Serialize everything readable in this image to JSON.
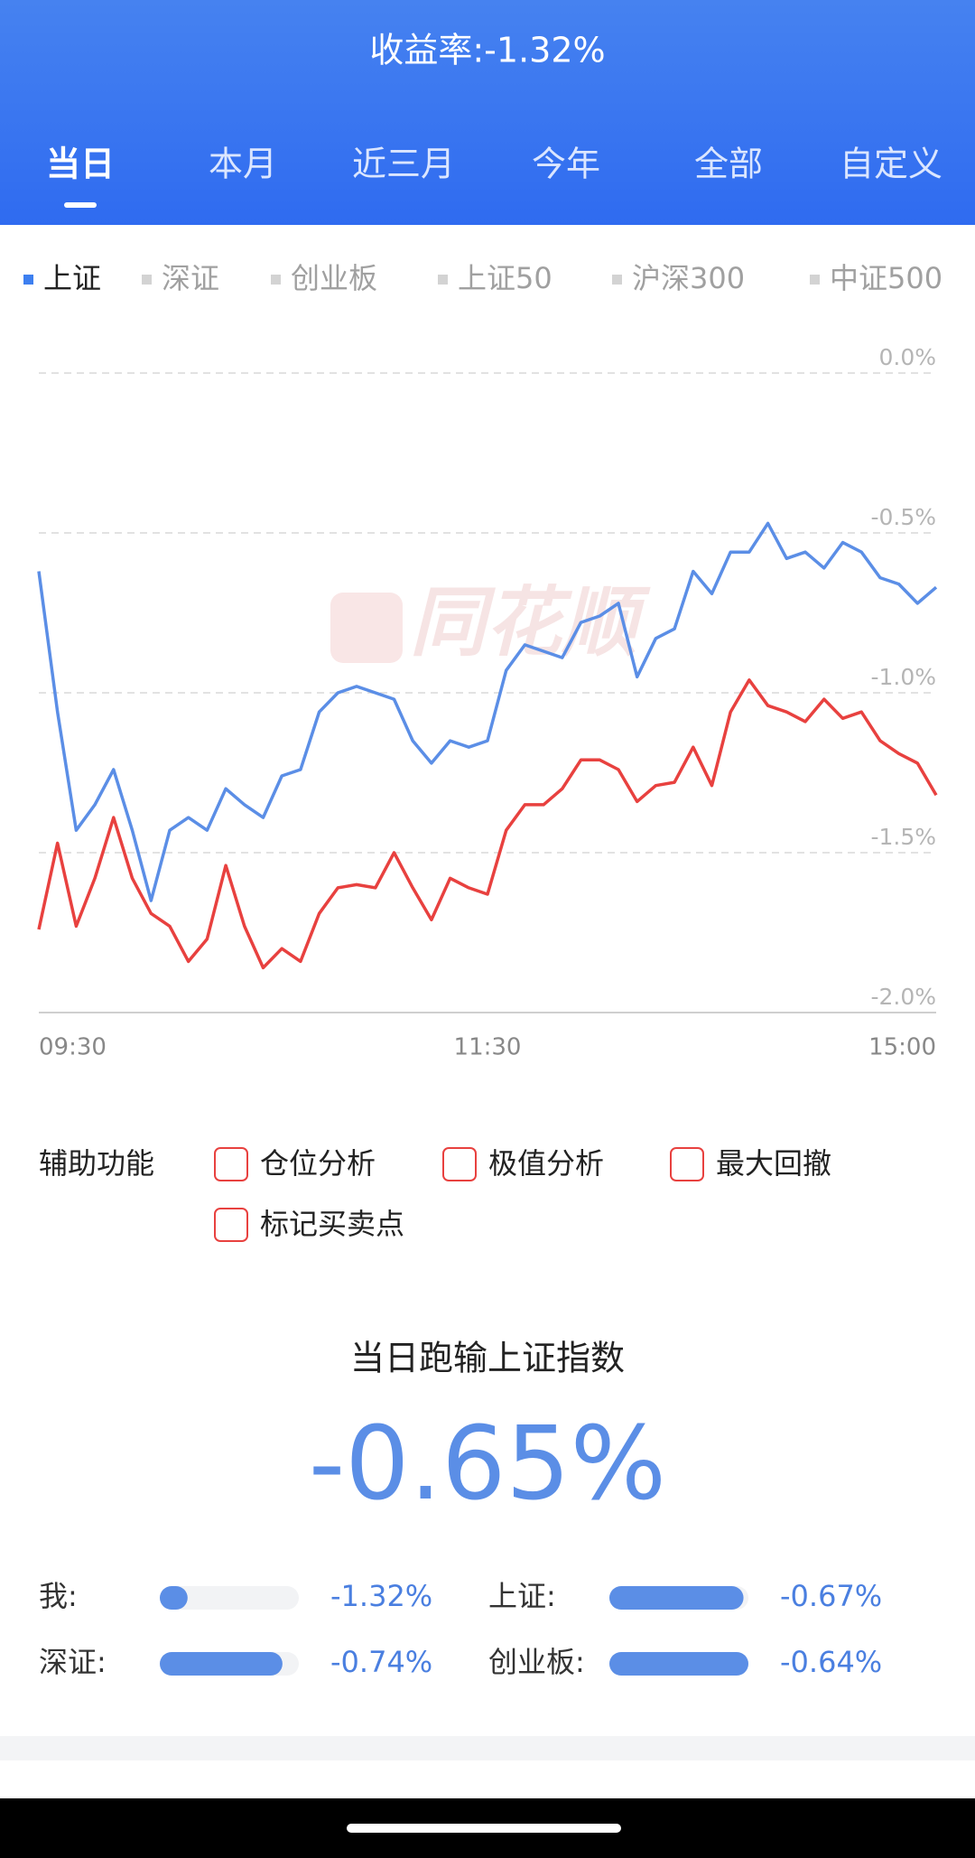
{
  "header": {
    "title": "收益率:-1.32%",
    "tabs": [
      "当日",
      "本月",
      "近三月",
      "今年",
      "全部",
      "自定义"
    ],
    "active_tab": 0
  },
  "legend": {
    "items": [
      "上证",
      "深证",
      "创业板",
      "上证50",
      "沪深300",
      "中证500"
    ],
    "active": 0
  },
  "chart_data": {
    "type": "line",
    "categories": [
      "09:30",
      null,
      null,
      null,
      null,
      null,
      null,
      null,
      null,
      null,
      null,
      null,
      null,
      null,
      null,
      null,
      null,
      null,
      null,
      null,
      null,
      null,
      null,
      null,
      "11:30",
      null,
      null,
      null,
      null,
      null,
      null,
      null,
      null,
      null,
      null,
      null,
      null,
      null,
      null,
      null,
      null,
      null,
      null,
      null,
      null,
      null,
      null,
      null,
      "15:00"
    ],
    "series": [
      {
        "color": "#5b8ee6",
        "values": [
          -0.62,
          -1.06,
          -1.43,
          -1.35,
          -1.24,
          -1.43,
          -1.65,
          -1.43,
          -1.39,
          -1.43,
          -1.3,
          -1.35,
          -1.39,
          -1.26,
          -1.24,
          -1.06,
          -1.0,
          -0.98,
          -1.0,
          -1.02,
          -1.15,
          -1.22,
          -1.15,
          -1.17,
          -1.15,
          -0.93,
          -0.85,
          -0.87,
          -0.89,
          -0.78,
          -0.76,
          -0.72,
          -0.95,
          -0.83,
          -0.8,
          -0.62,
          -0.69,
          -0.56,
          -0.56,
          -0.47,
          -0.58,
          -0.56,
          -0.61,
          -0.53,
          -0.56,
          -0.64,
          -0.66,
          -0.72,
          -0.67
        ]
      },
      {
        "color": "#e8413f",
        "values": [
          -1.74,
          -1.47,
          -1.73,
          -1.58,
          -1.39,
          -1.58,
          -1.69,
          -1.73,
          -1.84,
          -1.77,
          -1.54,
          -1.73,
          -1.86,
          -1.8,
          -1.84,
          -1.69,
          -1.61,
          -1.6,
          -1.61,
          -1.5,
          -1.61,
          -1.71,
          -1.58,
          -1.61,
          -1.63,
          -1.43,
          -1.35,
          -1.35,
          -1.3,
          -1.21,
          -1.21,
          -1.24,
          -1.34,
          -1.29,
          -1.28,
          -1.17,
          -1.29,
          -1.06,
          -0.96,
          -1.04,
          -1.06,
          -1.09,
          -1.02,
          -1.08,
          -1.06,
          -1.15,
          -1.19,
          -1.22,
          -1.32
        ]
      }
    ],
    "ylim": [
      -2,
      0
    ],
    "yticks": [
      {
        "value": 0,
        "label": "0.0%"
      },
      {
        "value": -0.5,
        "label": "-0.5%"
      },
      {
        "value": -1,
        "label": "-1.0%"
      },
      {
        "value": -1.5,
        "label": "-1.5%"
      },
      {
        "value": -2,
        "label": "-2.0%"
      }
    ],
    "grid": true,
    "watermark": "同花顺"
  },
  "tools": {
    "label": "辅助功能",
    "options": [
      "仓位分析",
      "极值分析",
      "最大回撤",
      "标记买卖点"
    ]
  },
  "summary": {
    "title": "当日跑输上证指数",
    "value": "-0.65%"
  },
  "stats": [
    {
      "label": "我:",
      "value": -1.32,
      "value_label": "-1.32%"
    },
    {
      "label": "上证:",
      "value": -0.67,
      "value_label": "-0.67%"
    },
    {
      "label": "深证:",
      "value": -0.74,
      "value_label": "-0.74%"
    },
    {
      "label": "创业板:",
      "value": -0.64,
      "value_label": "-0.64%"
    }
  ]
}
